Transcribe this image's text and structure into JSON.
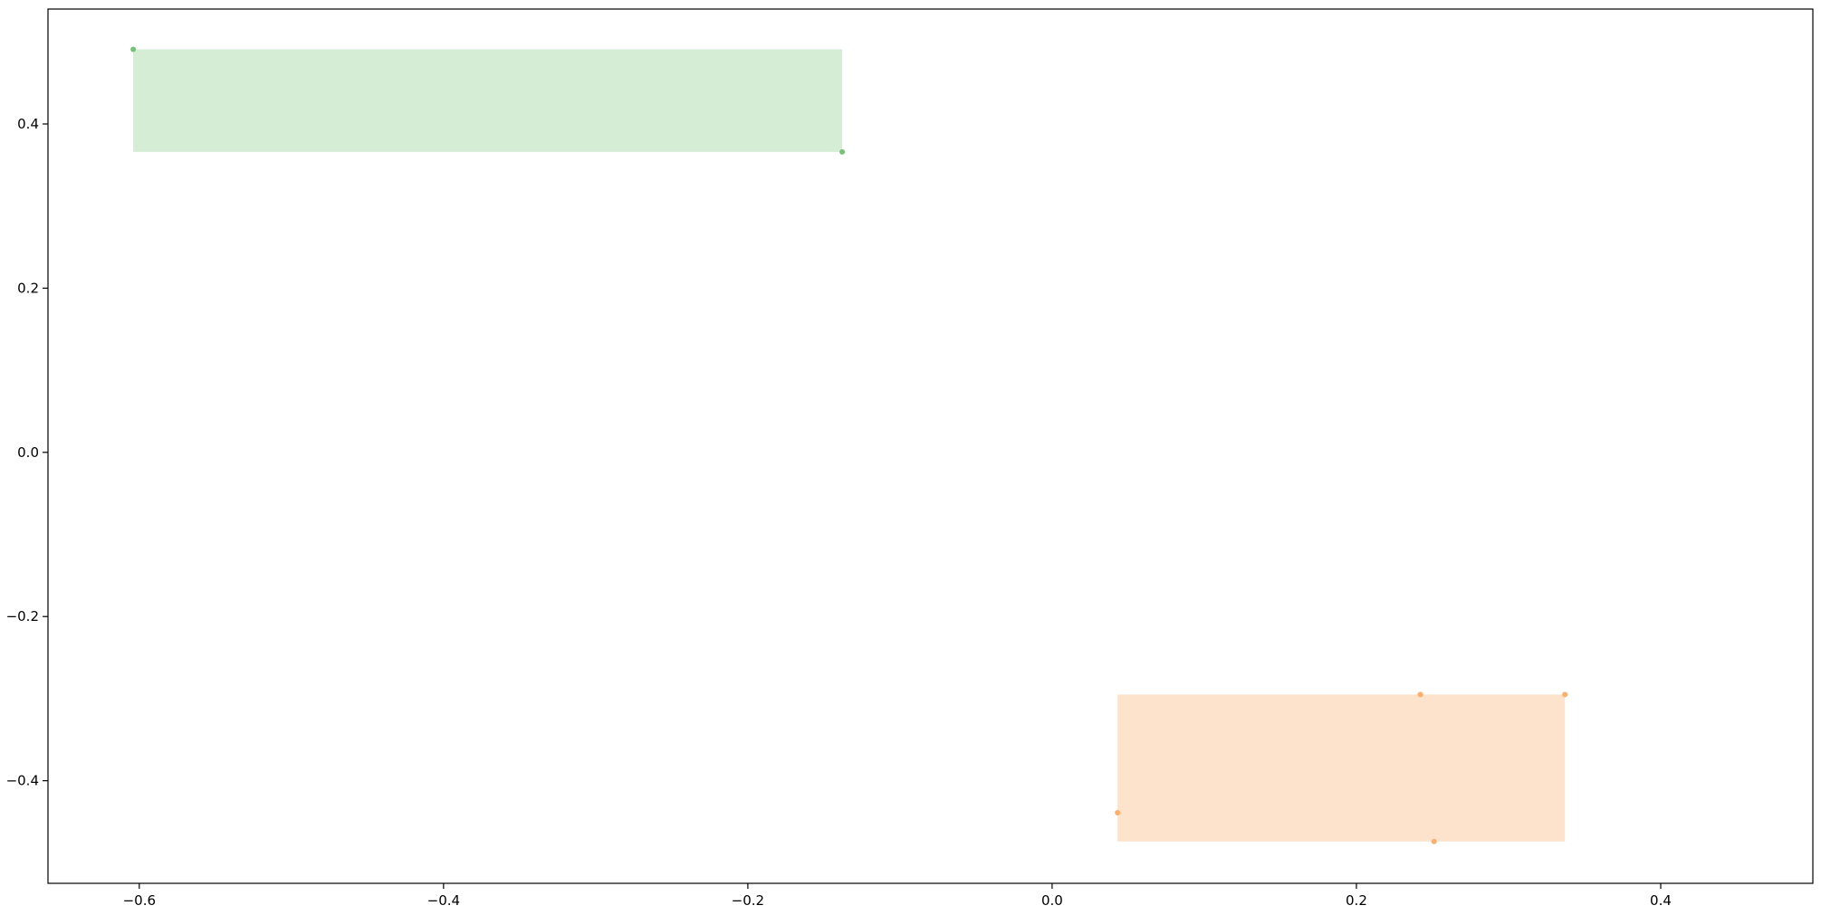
{
  "chart_data": {
    "type": "scatter",
    "title": "",
    "xlabel": "",
    "ylabel": "",
    "xlim": [
      -0.66,
      0.5
    ],
    "ylim": [
      -0.525,
      0.54
    ],
    "grid": false,
    "legend": "none",
    "xticks": [
      -0.6,
      -0.4,
      -0.2,
      0.0,
      0.2,
      0.4
    ],
    "xtick_labels": [
      "−0.6",
      "−0.4",
      "−0.2",
      "0.0",
      "0.2",
      "0.4"
    ],
    "yticks": [
      0.4,
      0.2,
      0.0,
      -0.2,
      -0.4
    ],
    "ytick_labels": [
      "0.4",
      "0.2",
      "0.0",
      "−0.2",
      "−0.4"
    ],
    "series": [
      {
        "color": "#74c476",
        "fill": "#d5ecd5",
        "points": [
          {
            "x": -0.604,
            "y": 0.491
          },
          {
            "x": -0.138,
            "y": 0.366
          }
        ],
        "box": {
          "x0": -0.604,
          "x1": -0.138,
          "y0": 0.366,
          "y1": 0.491
        }
      },
      {
        "color": "#fdae6b",
        "fill": "#fee3cc",
        "points": [
          {
            "x": 0.242,
            "y": -0.295
          },
          {
            "x": 0.337,
            "y": -0.295
          },
          {
            "x": 0.043,
            "y": -0.439
          },
          {
            "x": 0.251,
            "y": -0.474
          }
        ],
        "box": {
          "x0": 0.043,
          "x1": 0.337,
          "y0": -0.474,
          "y1": -0.295
        }
      }
    ]
  }
}
